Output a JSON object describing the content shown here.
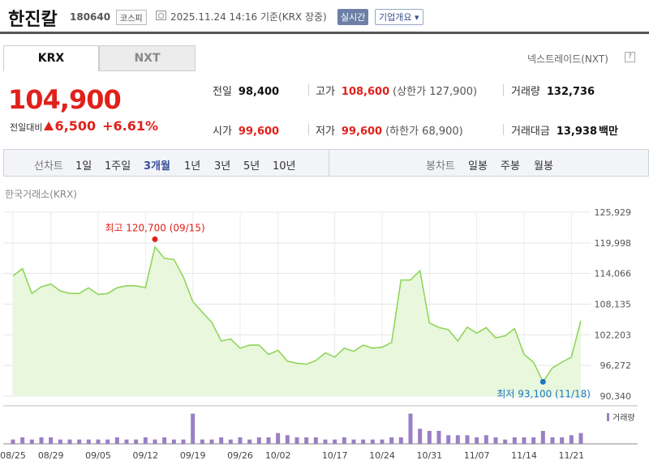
{
  "header": {
    "name": "한진칼",
    "code": "180640",
    "market": "코스피",
    "datetime": "2025.11.24 14:16",
    "basis": "기준(KRX 장중)",
    "realtime_label": "실시간",
    "company_label": "기업개요 ▾"
  },
  "tabs": [
    "KRX",
    "NXT"
  ],
  "nxt_link": "넥스트레이드(NXT)",
  "nxt_icon": "?",
  "price": {
    "current": "104,900",
    "change_label": "전일대비",
    "change": "6,500",
    "change_pct": "+6.61%"
  },
  "stats": {
    "prev_label": "전일",
    "prev": "98,400",
    "open_label": "시가",
    "open": "99,600",
    "high_label": "고가",
    "high": "108,600",
    "upper_limit": "(상한가 127,900)",
    "low_label": "저가",
    "low": "99,600",
    "lower_limit": "(하한가 68,900)",
    "volume_label": "거래량",
    "volume": "132,736",
    "amount_label": "거래대금",
    "amount": "13,938",
    "amount_unit": "백만"
  },
  "periods": {
    "label": "선차트",
    "items": [
      "1일",
      "1주일",
      "3개월",
      "1년",
      "3년",
      "5년",
      "10년"
    ],
    "active": "3개월",
    "candle_label": "봉차트",
    "candle_items": [
      "일봉",
      "주봉",
      "월봉"
    ]
  },
  "colors": {
    "price_up": "#e0211b",
    "line": "#8fd65a",
    "area": "#e9f7dc",
    "low_marker": "#1a78c2",
    "high_marker": "#e0211b",
    "volume": "#9b7fc4"
  },
  "chart_data": {
    "type": "area",
    "source": "한국거래소(KRX)",
    "ylim": [
      90340,
      125929
    ],
    "y_ticks": [
      "125,929",
      "119,998",
      "114,066",
      "108,135",
      "102,203",
      "96,272",
      "90,340"
    ],
    "y_tick_values": [
      125929,
      119998,
      114066,
      108135,
      102203,
      96272,
      90340
    ],
    "x_tick_labels": [
      "08/25",
      "08/29",
      "09/05",
      "09/12",
      "09/19",
      "09/26",
      "10/02",
      "10/17",
      "10/24",
      "10/31",
      "11/07",
      "11/14",
      "11/21"
    ],
    "x_tick_index": [
      0,
      4,
      9,
      14,
      19,
      24,
      28,
      34,
      39,
      44,
      49,
      54,
      59
    ],
    "grid": true,
    "values": [
      113600,
      115000,
      110200,
      111500,
      112000,
      110700,
      110200,
      110200,
      111300,
      110000,
      110200,
      111300,
      111700,
      111700,
      111300,
      119200,
      117000,
      116800,
      113400,
      108600,
      106600,
      104600,
      101000,
      101400,
      99600,
      100200,
      100200,
      98400,
      99200,
      97100,
      96700,
      96500,
      97200,
      98700,
      97900,
      99600,
      99000,
      100200,
      99600,
      99800,
      100700,
      112800,
      112800,
      114600,
      104500,
      103600,
      103200,
      101000,
      103700,
      102500,
      103600,
      101600,
      102000,
      103400,
      98400,
      96900,
      93100,
      95800,
      96900,
      97900,
      104900
    ],
    "high_label": "최고 120,700 (09/15)",
    "high_index": 15,
    "high_value": 120700,
    "low_label": "최저 93,100 (11/18)",
    "low_index": 56,
    "low_value": 93100,
    "volume_label": "거래량",
    "volume": [
      2,
      3,
      2,
      3,
      3,
      2,
      2,
      2,
      2,
      2,
      2,
      3,
      2,
      2,
      3,
      2,
      3,
      2,
      2,
      14,
      2,
      2,
      3,
      2,
      3,
      2,
      3,
      3,
      5,
      4,
      3,
      3,
      3,
      2,
      2,
      3,
      2,
      2,
      2,
      2,
      3,
      3,
      14,
      7,
      6,
      6,
      4,
      4,
      4,
      3,
      4,
      3,
      2,
      3,
      3,
      3,
      6,
      3,
      3,
      4,
      5
    ]
  }
}
